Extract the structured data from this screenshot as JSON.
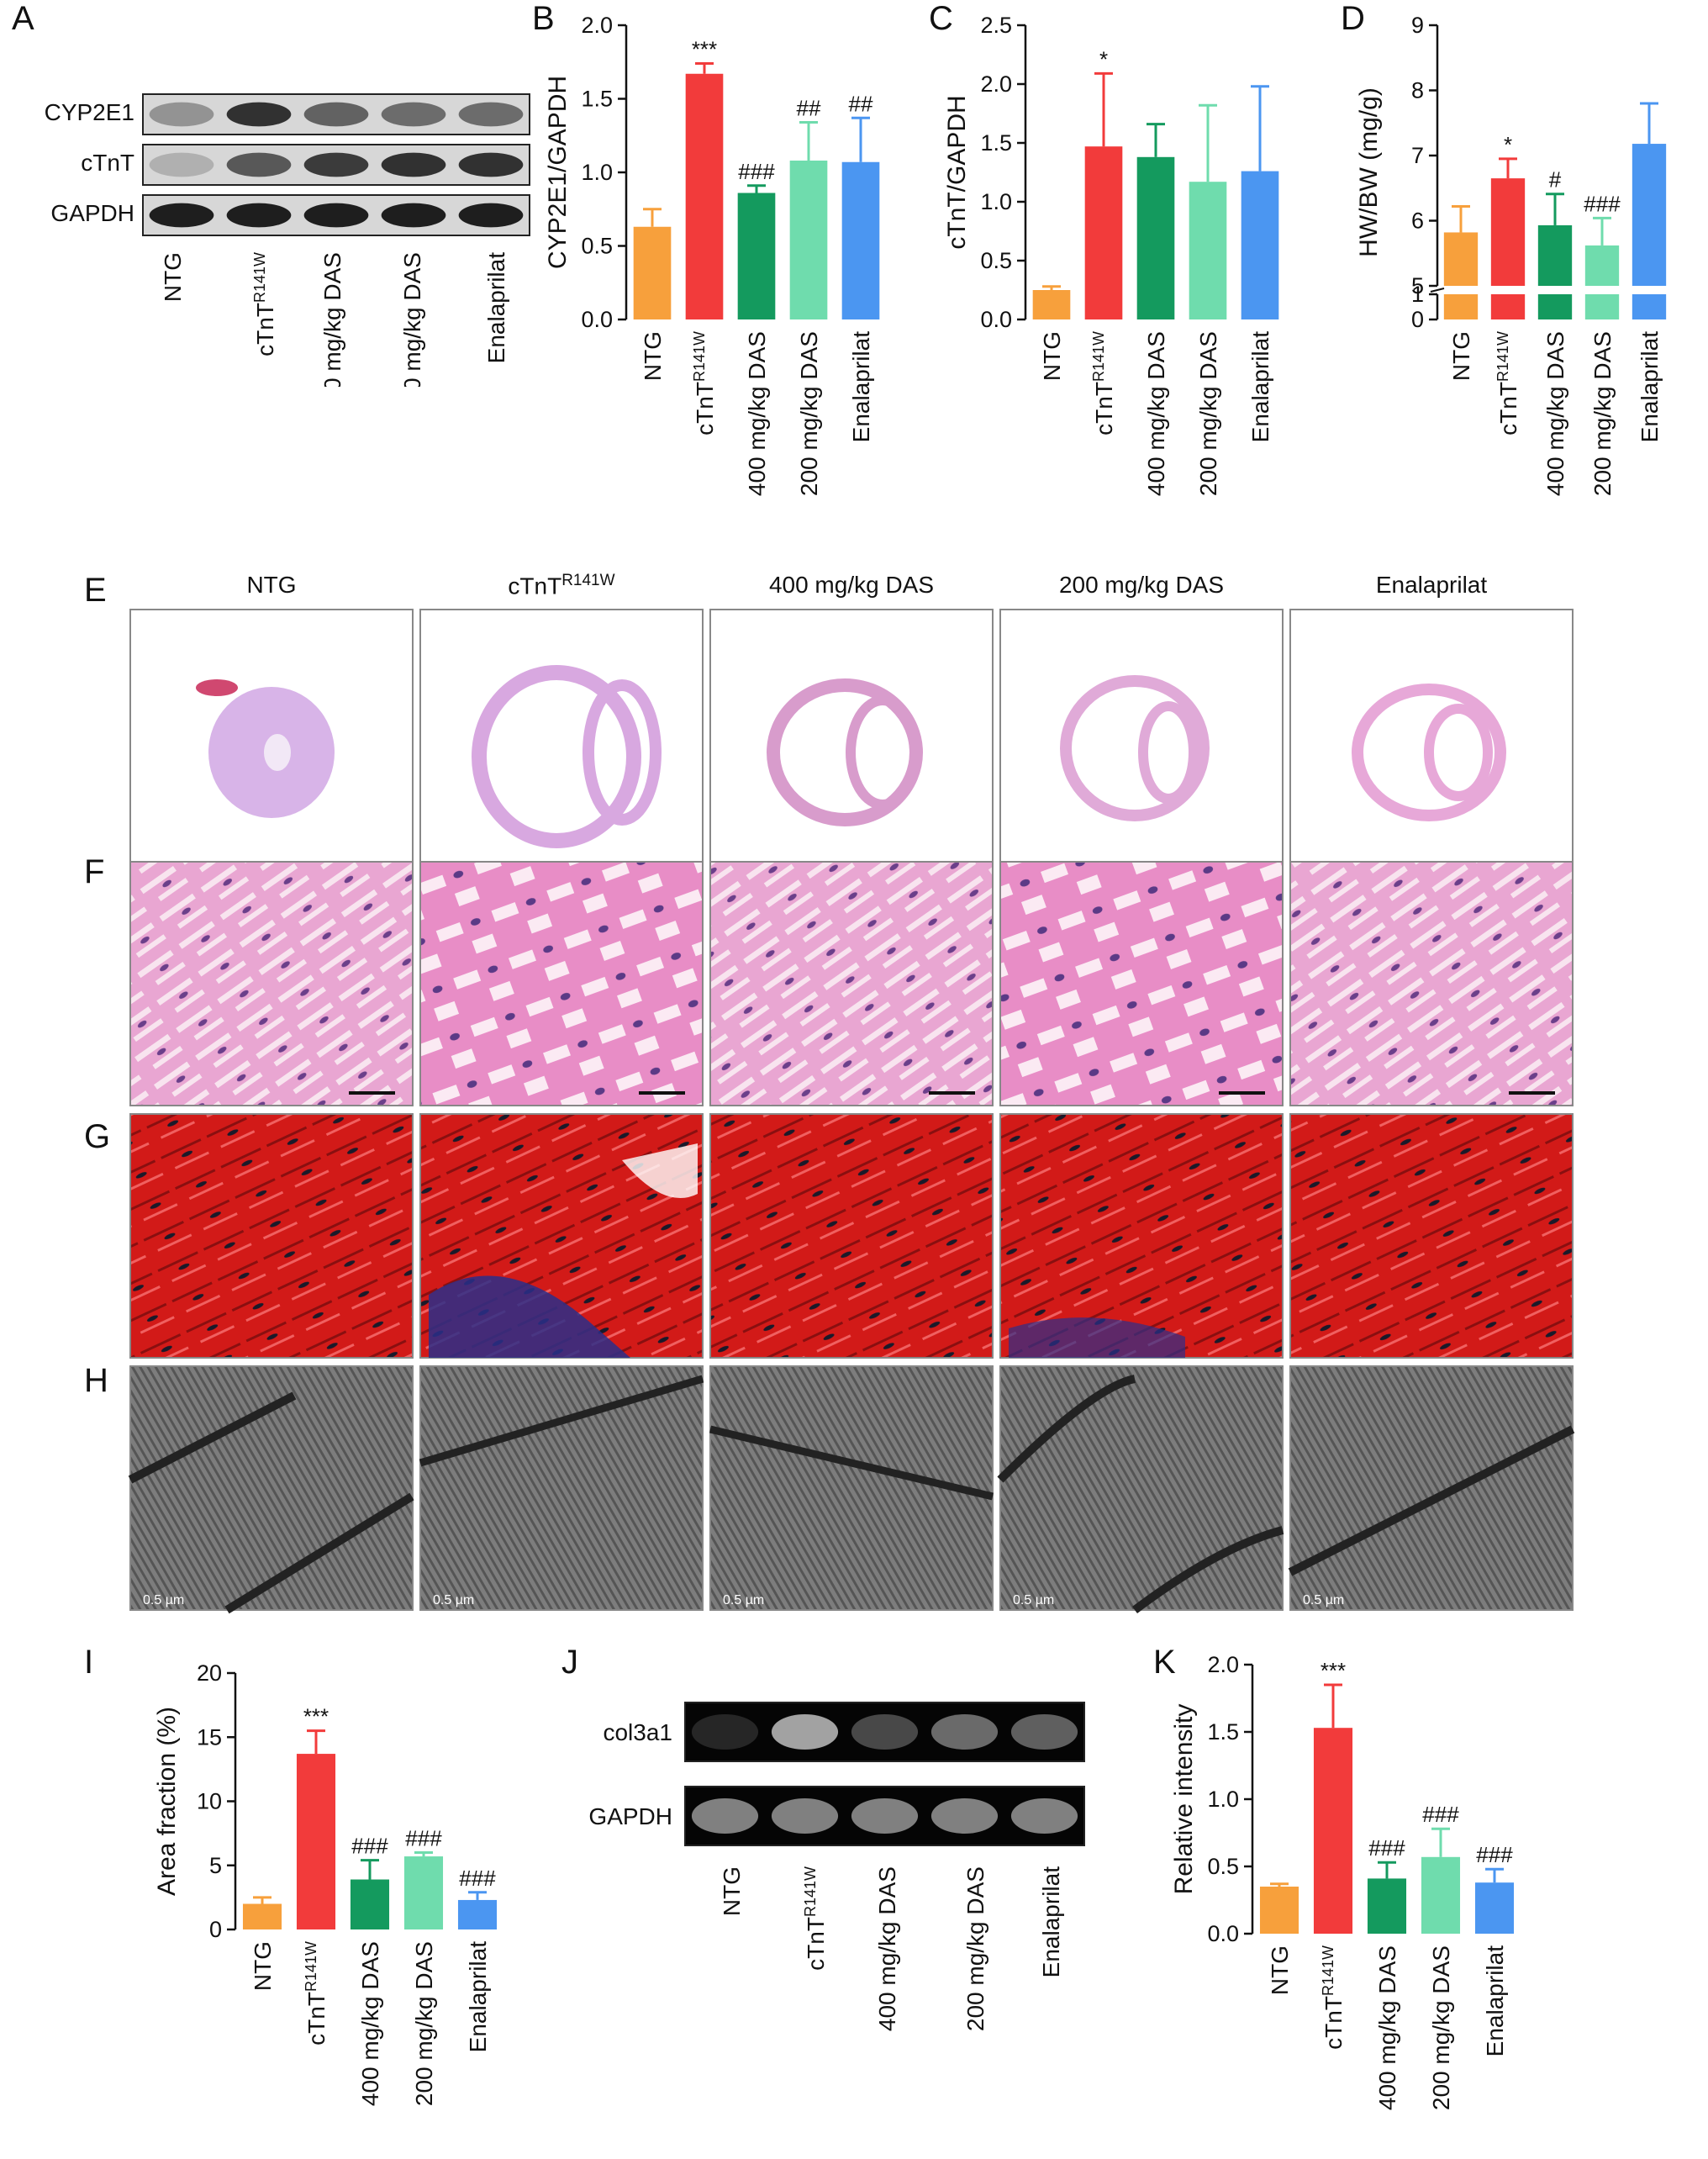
{
  "panel_labels": [
    "A",
    "B",
    "C",
    "D",
    "E",
    "F",
    "G",
    "H",
    "I",
    "J",
    "K"
  ],
  "colors": {
    "NTG": "#f7a03c",
    "cTnT": "#f23b3b",
    "DAS400": "#149a5e",
    "DAS200": "#6fdcad",
    "Enalaprilat": "#4b96f1"
  },
  "groups": {
    "g1": "NTG",
    "g2_base": "cTnT",
    "g2_sup": "R141W",
    "g3": "400 mg/kg DAS",
    "g4": "200 mg/kg DAS",
    "g5": "Enalaprilat"
  },
  "blot_A": {
    "rows": [
      "CYP2E1",
      "cTnT",
      "GAPDH"
    ],
    "intensity": [
      [
        0.35,
        0.85,
        0.6,
        0.55,
        0.55
      ],
      [
        0.2,
        0.65,
        0.8,
        0.85,
        0.85
      ],
      [
        0.95,
        0.95,
        0.95,
        0.95,
        0.95
      ]
    ]
  },
  "gel_J": {
    "rows": [
      "col3a1",
      "GAPDH"
    ],
    "intensity": [
      [
        0.15,
        0.7,
        0.3,
        0.45,
        0.4
      ],
      [
        0.55,
        0.55,
        0.55,
        0.55,
        0.55
      ]
    ]
  },
  "micro_rows": {
    "labels": [
      "E",
      "F",
      "G",
      "H"
    ],
    "scale_text": "0.5 µm"
  },
  "chart_data": [
    {
      "id": "B",
      "type": "bar",
      "categories": [
        "NTG",
        "cTnT R141W",
        "400 mg/kg DAS",
        "200 mg/kg DAS",
        "Enalaprilat"
      ],
      "values": [
        0.63,
        1.67,
        0.86,
        1.08,
        1.07
      ],
      "errors": [
        0.12,
        0.07,
        0.05,
        0.26,
        0.3
      ],
      "annotations": [
        "",
        "***",
        "###",
        "##",
        "##"
      ],
      "ylabel": "CYP2E1/GAPDH",
      "ylim": [
        0,
        2.0
      ],
      "yticks": [
        0.0,
        0.5,
        1.0,
        1.5,
        2.0
      ],
      "ytick_labels": [
        "0.0",
        "0.5",
        "1.0",
        "1.5",
        "2.0"
      ]
    },
    {
      "id": "C",
      "type": "bar",
      "categories": [
        "NTG",
        "cTnT R141W",
        "400 mg/kg DAS",
        "200 mg/kg DAS",
        "Enalaprilat"
      ],
      "values": [
        0.25,
        1.47,
        1.38,
        1.17,
        1.26
      ],
      "errors": [
        0.03,
        0.62,
        0.28,
        0.65,
        0.72
      ],
      "annotations": [
        "",
        "*",
        "",
        "",
        ""
      ],
      "ylabel": "cTnT/GAPDH",
      "ylim": [
        0,
        2.5
      ],
      "yticks": [
        0.0,
        0.5,
        1.0,
        1.5,
        2.0,
        2.5
      ],
      "ytick_labels": [
        "0.0",
        "0.5",
        "1.0",
        "1.5",
        "2.0",
        "2.5"
      ]
    },
    {
      "id": "D",
      "type": "bar",
      "categories": [
        "NTG",
        "cTnT R141W",
        "400 mg/kg DAS",
        "200 mg/kg DAS",
        "Enalaprilat"
      ],
      "values": [
        5.82,
        6.65,
        5.93,
        5.62,
        7.18
      ],
      "errors": [
        0.4,
        0.3,
        0.48,
        0.42,
        0.62
      ],
      "annotations": [
        "",
        "*",
        "#",
        "###",
        ""
      ],
      "ylabel": "HW/BW (mg/g)",
      "ylim": [
        0,
        9
      ],
      "axis_break": true,
      "yticks": [
        0,
        1,
        5,
        6,
        7,
        8,
        9
      ],
      "ytick_labels": [
        "0",
        "1",
        "5",
        "6",
        "7",
        "8",
        "9"
      ]
    },
    {
      "id": "I",
      "type": "bar",
      "categories": [
        "NTG",
        "cTnT R141W",
        "400 mg/kg DAS",
        "200 mg/kg DAS",
        "Enalaprilat"
      ],
      "values": [
        2.0,
        13.7,
        3.9,
        5.7,
        2.3
      ],
      "errors": [
        0.5,
        1.8,
        1.5,
        0.3,
        0.6
      ],
      "annotations": [
        "",
        "***",
        "###",
        "###",
        "###"
      ],
      "ylabel": "Area fraction (%)",
      "ylim": [
        0,
        20
      ],
      "yticks": [
        0,
        5,
        10,
        15,
        20
      ],
      "ytick_labels": [
        "0",
        "5",
        "10",
        "15",
        "20"
      ]
    },
    {
      "id": "K",
      "type": "bar",
      "categories": [
        "NTG",
        "cTnT R141W",
        "400 mg/kg DAS",
        "200 mg/kg DAS",
        "Enalaprilat"
      ],
      "values": [
        0.35,
        1.53,
        0.41,
        0.57,
        0.38
      ],
      "errors": [
        0.02,
        0.32,
        0.12,
        0.21,
        0.1
      ],
      "annotations": [
        "",
        "***",
        "###",
        "###",
        "###"
      ],
      "ylabel": "Relative intensity",
      "ylim": [
        0,
        2.0
      ],
      "yticks": [
        0.0,
        0.5,
        1.0,
        1.5,
        2.0
      ],
      "ytick_labels": [
        "0.0",
        "0.5",
        "1.0",
        "1.5",
        "2.0"
      ]
    }
  ]
}
